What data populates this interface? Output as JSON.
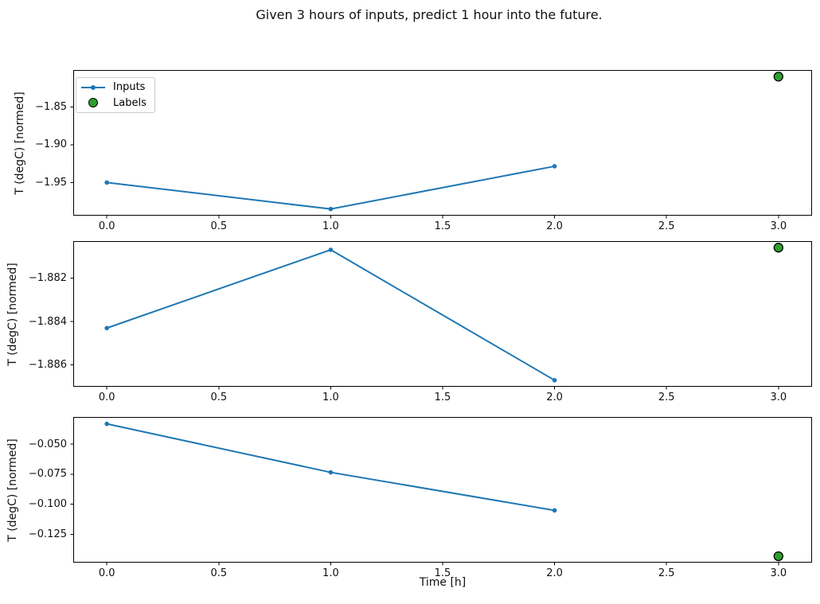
{
  "chart_data": {
    "type": "line",
    "title": "Given 3 hours of inputs, predict 1 hour into the future.",
    "xlabel": "Time [h]",
    "grid": false,
    "colors": {
      "inputs": "#1f77b4",
      "labels": "#2ca02c",
      "labels_edge": "#000000",
      "axis": "#000000"
    },
    "legend": {
      "position": "upper-left",
      "entries": [
        {
          "label": "Inputs",
          "marker": "line-dot",
          "color": "#1f77b4"
        },
        {
          "label": "Labels",
          "marker": "circle",
          "color": "#2ca02c",
          "edge": "#000000"
        }
      ]
    },
    "xlim": [
      -0.15,
      3.15
    ],
    "x_ticks": {
      "values": [
        0.0,
        0.5,
        1.0,
        1.5,
        2.0,
        2.5,
        3.0
      ],
      "labels": [
        "0.0",
        "0.5",
        "1.0",
        "1.5",
        "2.0",
        "2.5",
        "3.0"
      ]
    },
    "subplots": [
      {
        "ylabel": "T (degC) [normed]",
        "series": [
          {
            "name": "Inputs",
            "x": [
              0,
              1,
              2
            ],
            "y": [
              -1.95,
              -1.985,
              -1.9285
            ]
          },
          {
            "name": "Labels",
            "x": [
              3
            ],
            "y": [
              -1.81
            ]
          }
        ],
        "ylim": [
          -1.9938,
          -1.8013
        ],
        "y_ticks": {
          "values": [
            -1.85,
            -1.9,
            -1.95
          ],
          "labels": [
            "−1.85",
            "−1.90",
            "−1.95"
          ]
        }
      },
      {
        "ylabel": "T (degC) [normed]",
        "series": [
          {
            "name": "Inputs",
            "x": [
              0,
              1,
              2
            ],
            "y": [
              -1.8843,
              -1.8807,
              -1.8867
            ]
          },
          {
            "name": "Labels",
            "x": [
              3
            ],
            "y": [
              -1.8806
            ]
          }
        ],
        "ylim": [
          -1.887,
          -1.8803
        ],
        "y_ticks": {
          "values": [
            -1.882,
            -1.884,
            -1.886
          ],
          "labels": [
            "−1.882",
            "−1.884",
            "−1.886"
          ]
        }
      },
      {
        "ylabel": "T (degC) [normed]",
        "series": [
          {
            "name": "Inputs",
            "x": [
              0,
              1,
              2
            ],
            "y": [
              -0.0332,
              -0.0735,
              -0.1051
            ]
          },
          {
            "name": "Labels",
            "x": [
              3
            ],
            "y": [
              -0.1432
            ]
          }
        ],
        "ylim": [
          -0.1485,
          -0.0275
        ],
        "y_ticks": {
          "values": [
            -0.05,
            -0.075,
            -0.1,
            -0.125
          ],
          "labels": [
            "−0.050",
            "−0.075",
            "−0.100",
            "−0.125"
          ]
        }
      }
    ]
  }
}
